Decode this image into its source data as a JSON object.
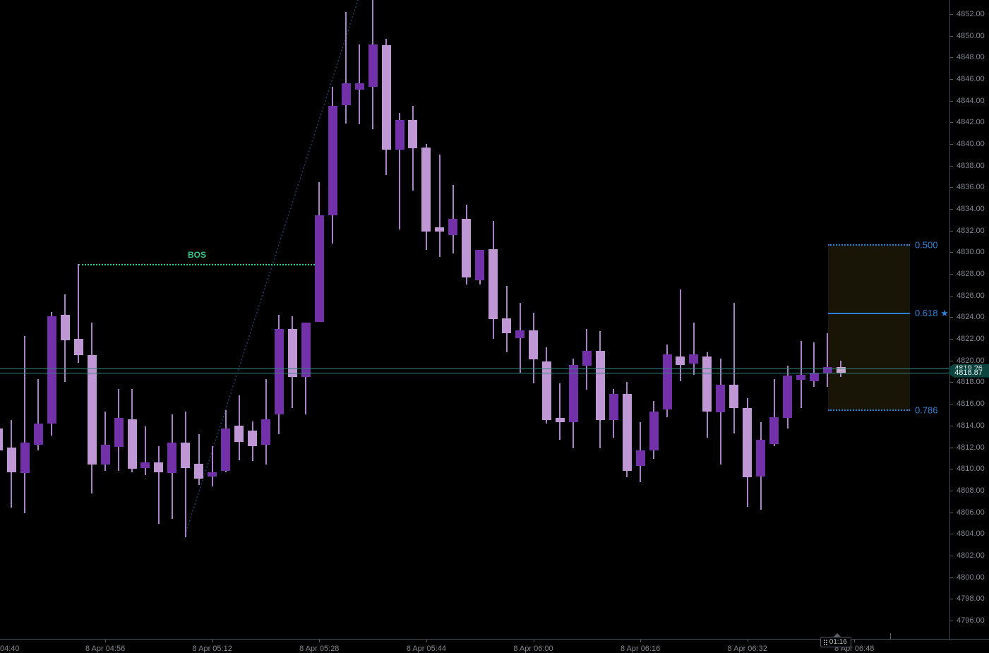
{
  "chart_data": {
    "type": "candlestick",
    "interval_minutes": 2,
    "session_date": "8 Apr",
    "y_axis": {
      "side": "right",
      "visible_top": 4853.3,
      "visible_bottom": 4794.3,
      "tick_labels": [
        "4852.00",
        "4850.00",
        "4848.00",
        "4846.00",
        "4844.00",
        "4842.00",
        "4840.00",
        "4838.00",
        "4836.00",
        "4834.00",
        "4832.00",
        "4830.00",
        "4828.00",
        "4826.00",
        "4824.00",
        "4822.00",
        "4820.00",
        "4818.00",
        "4816.00",
        "4814.00",
        "4812.00",
        "4810.00",
        "4808.00",
        "4806.00",
        "4804.00",
        "4802.00",
        "4800.00",
        "4798.00",
        "4796.00"
      ]
    },
    "x_axis": {
      "ticks": [
        {
          "label": "04:40",
          "index": 0
        },
        {
          "label": "8 Apr 04:56",
          "index": 8
        },
        {
          "label": "8 Apr 05:12",
          "index": 16
        },
        {
          "label": "8 Apr 05:28",
          "index": 24
        },
        {
          "label": "8 Apr 05:44",
          "index": 32
        },
        {
          "label": "8 Apr 06:00",
          "index": 40
        },
        {
          "label": "8 Apr 06:16",
          "index": 48
        },
        {
          "label": "8 Apr 06:32",
          "index": 56
        },
        {
          "label": "8 Apr 06:48",
          "index": 64
        }
      ]
    },
    "candles": [
      {
        "t": "04:40",
        "o": 4813.7,
        "h": 4814.1,
        "l": 4811.0,
        "c": 4811.7,
        "dir": "down"
      },
      {
        "t": "04:42",
        "o": 4812.0,
        "h": 4814.5,
        "l": 4806.4,
        "c": 4809.7,
        "dir": "down"
      },
      {
        "t": "04:44",
        "o": 4809.6,
        "h": 4822.3,
        "l": 4805.9,
        "c": 4812.4,
        "dir": "up"
      },
      {
        "t": "04:46",
        "o": 4812.2,
        "h": 4818.3,
        "l": 4811.7,
        "c": 4814.2,
        "dir": "up"
      },
      {
        "t": "04:48",
        "o": 4814.2,
        "h": 4824.5,
        "l": 4813.1,
        "c": 4824.1,
        "dir": "up"
      },
      {
        "t": "04:50",
        "o": 4824.2,
        "h": 4826.1,
        "l": 4818.0,
        "c": 4821.9,
        "dir": "down"
      },
      {
        "t": "04:52",
        "o": 4822.0,
        "h": 4828.9,
        "l": 4819.8,
        "c": 4820.5,
        "dir": "down"
      },
      {
        "t": "04:54",
        "o": 4820.5,
        "h": 4823.5,
        "l": 4807.7,
        "c": 4810.4,
        "dir": "down"
      },
      {
        "t": "04:56",
        "o": 4810.4,
        "h": 4815.3,
        "l": 4809.8,
        "c": 4812.2,
        "dir": "up"
      },
      {
        "t": "04:58",
        "o": 4812.0,
        "h": 4817.4,
        "l": 4809.8,
        "c": 4814.7,
        "dir": "up"
      },
      {
        "t": "05:00",
        "o": 4814.6,
        "h": 4817.4,
        "l": 4809.7,
        "c": 4810.0,
        "dir": "down"
      },
      {
        "t": "05:02",
        "o": 4810.1,
        "h": 4813.9,
        "l": 4809.4,
        "c": 4810.6,
        "dir": "up"
      },
      {
        "t": "05:04",
        "o": 4810.6,
        "h": 4812.1,
        "l": 4804.9,
        "c": 4809.7,
        "dir": "down"
      },
      {
        "t": "05:06",
        "o": 4809.6,
        "h": 4815.0,
        "l": 4805.4,
        "c": 4812.4,
        "dir": "up"
      },
      {
        "t": "05:08",
        "o": 4812.4,
        "h": 4815.3,
        "l": 4803.7,
        "c": 4810.1,
        "dir": "down"
      },
      {
        "t": "05:10",
        "o": 4810.5,
        "h": 4813.2,
        "l": 4808.5,
        "c": 4809.1,
        "dir": "down"
      },
      {
        "t": "05:12",
        "o": 4809.3,
        "h": 4812.1,
        "l": 4808.4,
        "c": 4809.7,
        "dir": "up"
      },
      {
        "t": "05:14",
        "o": 4809.8,
        "h": 4815.4,
        "l": 4809.7,
        "c": 4813.7,
        "dir": "up"
      },
      {
        "t": "05:16",
        "o": 4814.0,
        "h": 4816.8,
        "l": 4810.8,
        "c": 4812.5,
        "dir": "down"
      },
      {
        "t": "05:18",
        "o": 4813.5,
        "h": 4814.4,
        "l": 4810.7,
        "c": 4812.1,
        "dir": "down"
      },
      {
        "t": "05:20",
        "o": 4812.2,
        "h": 4818.3,
        "l": 4810.4,
        "c": 4814.6,
        "dir": "up"
      },
      {
        "t": "05:22",
        "o": 4815.0,
        "h": 4824.2,
        "l": 4813.2,
        "c": 4822.9,
        "dir": "up"
      },
      {
        "t": "05:24",
        "o": 4822.9,
        "h": 4824.1,
        "l": 4815.6,
        "c": 4818.5,
        "dir": "down"
      },
      {
        "t": "05:26",
        "o": 4818.5,
        "h": 4823.5,
        "l": 4815.0,
        "c": 4823.5,
        "dir": "up"
      },
      {
        "t": "05:28",
        "o": 4823.6,
        "h": 4836.5,
        "l": 4823.6,
        "c": 4833.4,
        "dir": "up"
      },
      {
        "t": "05:30",
        "o": 4833.4,
        "h": 4845.3,
        "l": 4830.8,
        "c": 4843.5,
        "dir": "up"
      },
      {
        "t": "05:32",
        "o": 4843.6,
        "h": 4852.2,
        "l": 4841.9,
        "c": 4845.6,
        "dir": "up"
      },
      {
        "t": "05:34",
        "o": 4845.0,
        "h": 4849.2,
        "l": 4841.8,
        "c": 4845.6,
        "dir": "up"
      },
      {
        "t": "05:36",
        "o": 4845.3,
        "h": 4853.5,
        "l": 4841.4,
        "c": 4849.2,
        "dir": "up"
      },
      {
        "t": "05:38",
        "o": 4849.1,
        "h": 4849.7,
        "l": 4837.1,
        "c": 4839.5,
        "dir": "down"
      },
      {
        "t": "05:40",
        "o": 4839.5,
        "h": 4842.9,
        "l": 4832.1,
        "c": 4842.2,
        "dir": "up"
      },
      {
        "t": "05:42",
        "o": 4842.2,
        "h": 4843.5,
        "l": 4835.7,
        "c": 4839.6,
        "dir": "down"
      },
      {
        "t": "05:44",
        "o": 4839.7,
        "h": 4840.0,
        "l": 4830.2,
        "c": 4831.9,
        "dir": "down"
      },
      {
        "t": "05:46",
        "o": 4832.3,
        "h": 4839.0,
        "l": 4829.6,
        "c": 4831.9,
        "dir": "down"
      },
      {
        "t": "05:48",
        "o": 4831.6,
        "h": 4836.2,
        "l": 4829.9,
        "c": 4833.1,
        "dir": "up"
      },
      {
        "t": "05:50",
        "o": 4833.1,
        "h": 4834.4,
        "l": 4827.0,
        "c": 4827.7,
        "dir": "down"
      },
      {
        "t": "05:52",
        "o": 4827.4,
        "h": 4830.2,
        "l": 4827.0,
        "c": 4830.2,
        "dir": "up"
      },
      {
        "t": "05:54",
        "o": 4830.3,
        "h": 4832.9,
        "l": 4822.0,
        "c": 4823.8,
        "dir": "down"
      },
      {
        "t": "05:56",
        "o": 4823.9,
        "h": 4826.9,
        "l": 4820.8,
        "c": 4822.5,
        "dir": "down"
      },
      {
        "t": "05:58",
        "o": 4822.1,
        "h": 4825.3,
        "l": 4818.9,
        "c": 4822.8,
        "dir": "up"
      },
      {
        "t": "06:00",
        "o": 4822.8,
        "h": 4824.4,
        "l": 4817.9,
        "c": 4820.1,
        "dir": "down"
      },
      {
        "t": "06:02",
        "o": 4819.9,
        "h": 4821.2,
        "l": 4814.2,
        "c": 4814.5,
        "dir": "down"
      },
      {
        "t": "06:04",
        "o": 4814.7,
        "h": 4817.9,
        "l": 4812.7,
        "c": 4814.3,
        "dir": "down"
      },
      {
        "t": "06:06",
        "o": 4814.3,
        "h": 4820.2,
        "l": 4811.9,
        "c": 4819.6,
        "dir": "up"
      },
      {
        "t": "06:08",
        "o": 4819.5,
        "h": 4822.9,
        "l": 4817.3,
        "c": 4820.9,
        "dir": "up"
      },
      {
        "t": "06:10",
        "o": 4820.9,
        "h": 4822.7,
        "l": 4811.9,
        "c": 4814.5,
        "dir": "down"
      },
      {
        "t": "06:12",
        "o": 4814.5,
        "h": 4817.4,
        "l": 4812.9,
        "c": 4816.9,
        "dir": "up"
      },
      {
        "t": "06:14",
        "o": 4816.9,
        "h": 4818.0,
        "l": 4809.2,
        "c": 4809.8,
        "dir": "down"
      },
      {
        "t": "06:16",
        "o": 4810.3,
        "h": 4814.3,
        "l": 4808.8,
        "c": 4811.7,
        "dir": "up"
      },
      {
        "t": "06:18",
        "o": 4811.7,
        "h": 4816.3,
        "l": 4810.9,
        "c": 4815.3,
        "dir": "up"
      },
      {
        "t": "06:20",
        "o": 4815.5,
        "h": 4821.5,
        "l": 4814.8,
        "c": 4820.6,
        "dir": "up"
      },
      {
        "t": "06:22",
        "o": 4820.4,
        "h": 4826.6,
        "l": 4818.1,
        "c": 4819.6,
        "dir": "down"
      },
      {
        "t": "06:24",
        "o": 4819.7,
        "h": 4823.5,
        "l": 4818.7,
        "c": 4820.6,
        "dir": "up"
      },
      {
        "t": "06:26",
        "o": 4820.4,
        "h": 4820.8,
        "l": 4812.9,
        "c": 4815.3,
        "dir": "down"
      },
      {
        "t": "06:28",
        "o": 4815.2,
        "h": 4820.2,
        "l": 4810.4,
        "c": 4817.8,
        "dir": "up"
      },
      {
        "t": "06:30",
        "o": 4817.8,
        "h": 4825.3,
        "l": 4813.3,
        "c": 4815.6,
        "dir": "down"
      },
      {
        "t": "06:32",
        "o": 4815.6,
        "h": 4816.5,
        "l": 4806.5,
        "c": 4809.2,
        "dir": "down"
      },
      {
        "t": "06:34",
        "o": 4809.3,
        "h": 4814.3,
        "l": 4806.2,
        "c": 4812.7,
        "dir": "up"
      },
      {
        "t": "06:36",
        "o": 4812.3,
        "h": 4818.3,
        "l": 4812.1,
        "c": 4814.8,
        "dir": "up"
      },
      {
        "t": "06:38",
        "o": 4814.7,
        "h": 4819.5,
        "l": 4813.7,
        "c": 4818.6,
        "dir": "up"
      },
      {
        "t": "06:40",
        "o": 4818.2,
        "h": 4821.8,
        "l": 4815.6,
        "c": 4818.7,
        "dir": "up"
      },
      {
        "t": "06:42",
        "o": 4818.1,
        "h": 4821.7,
        "l": 4817.6,
        "c": 4818.8,
        "dir": "up"
      },
      {
        "t": "06:44",
        "o": 4818.9,
        "h": 4822.5,
        "l": 4817.6,
        "c": 4819.4,
        "dir": "up"
      },
      {
        "t": "06:46",
        "o": 4819.4,
        "h": 4820.0,
        "l": 4818.5,
        "c": 4818.9,
        "dir": "down"
      }
    ],
    "overlays": {
      "bos": {
        "label": "BOS",
        "price": 4828.9,
        "start_index": 6,
        "end_index": 23.88
      },
      "trendline": {
        "from": {
          "index": 13.96,
          "price": 4803.9
        },
        "to": {
          "index": 26.89,
          "price": 4853.3
        }
      },
      "fib_retracement": {
        "start_index": 62.03,
        "end_index": 68.15,
        "levels": [
          {
            "label": "0.500",
            "price": 4830.7,
            "style": "dotted"
          },
          {
            "label": "0.618 ★",
            "price": 4824.35,
            "style": "solid"
          },
          {
            "label": "0.786",
            "price": 4815.45,
            "style": "dotted"
          }
        ]
      },
      "price_lines": [
        {
          "label": "4819.26",
          "price": 4819.26
        },
        {
          "label": "4818.87",
          "price": 4818.87
        }
      ],
      "countdown": {
        "label": "01:16",
        "index": 62.6
      }
    },
    "colors": {
      "background": "#000000",
      "up_candle": "#7231a8",
      "down_candle": "#bf97d4",
      "last_candle": "#c9a9cf",
      "wick": "#a982c9",
      "bos_green": "#2fc98c",
      "trendline_navy": "#1d4066",
      "fib_blue": "#2e82d6",
      "fib_fill": "rgba(190,166,44,0.13)",
      "price_line_teal": "#2f8a7d",
      "badge_bg": "#0d443f",
      "axis_text": "#84878f"
    }
  }
}
